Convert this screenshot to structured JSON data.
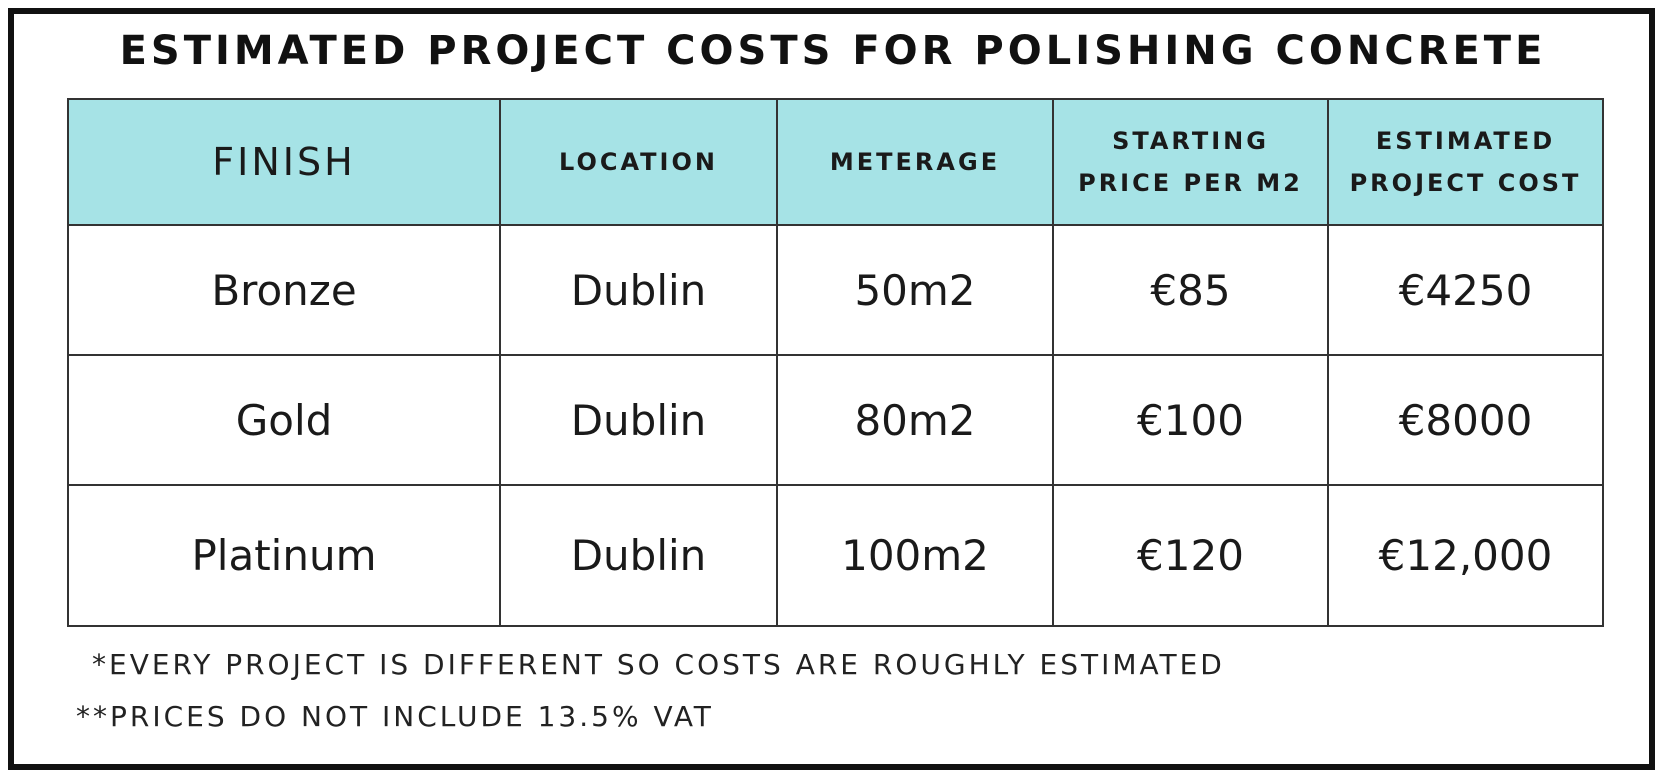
{
  "header": {
    "title": "ESTIMATED PROJECT COSTS FOR POLISHING CONCRETE"
  },
  "table": {
    "columns": [
      "FINISH",
      "LOCATION",
      "METERAGE",
      "STARTING PRICE PER M2",
      "ESTIMATED PROJECT COST"
    ],
    "rows": [
      [
        "Bronze",
        "Dublin",
        "50m2",
        "€85",
        "€4250"
      ],
      [
        "Gold",
        "Dublin",
        "80m2",
        "€100",
        "€8000"
      ],
      [
        "Platinum",
        "Dublin",
        "100m2",
        "€120",
        "€12,000"
      ]
    ]
  },
  "notes": [
    "*EVERY PROJECT IS DIFFERENT SO COSTS ARE ROUGHLY ESTIMATED",
    "**PRICES DO NOT INCLUDE 13.5% VAT"
  ]
}
